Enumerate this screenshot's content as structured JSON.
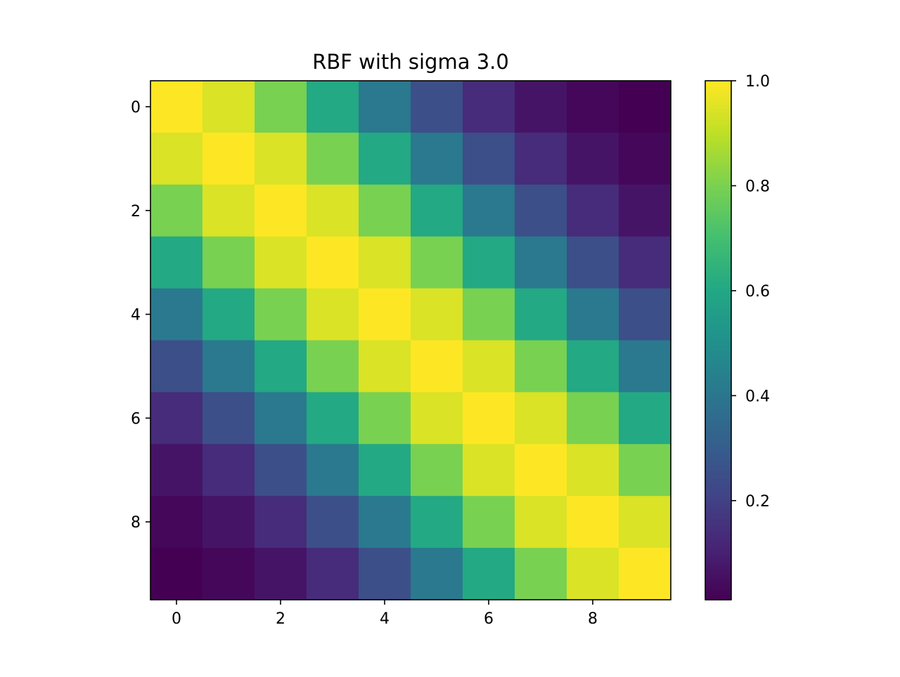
{
  "chart_data": {
    "type": "heatmap",
    "title": "RBF with sigma 3.0",
    "xlabel": "",
    "ylabel": "",
    "rows": 10,
    "cols": 10,
    "x_ticks": [
      0,
      2,
      4,
      6,
      8
    ],
    "y_ticks": [
      0,
      2,
      4,
      6,
      8
    ],
    "colorbar": {
      "range": [
        0.0111,
        1.0
      ],
      "ticks": [
        0.2,
        0.4,
        0.6,
        0.8,
        1.0
      ],
      "tick_labels": [
        "0.2",
        "0.4",
        "0.6",
        "0.8",
        "1.0"
      ]
    },
    "colormap": "viridis",
    "values": [
      [
        1.0,
        0.946,
        0.801,
        0.607,
        0.411,
        0.249,
        0.135,
        0.066,
        0.029,
        0.011
      ],
      [
        0.946,
        1.0,
        0.946,
        0.801,
        0.607,
        0.411,
        0.249,
        0.135,
        0.066,
        0.029
      ],
      [
        0.801,
        0.946,
        1.0,
        0.946,
        0.801,
        0.607,
        0.411,
        0.249,
        0.135,
        0.066
      ],
      [
        0.607,
        0.801,
        0.946,
        1.0,
        0.946,
        0.801,
        0.607,
        0.411,
        0.249,
        0.135
      ],
      [
        0.411,
        0.607,
        0.801,
        0.946,
        1.0,
        0.946,
        0.801,
        0.607,
        0.411,
        0.249
      ],
      [
        0.249,
        0.411,
        0.607,
        0.801,
        0.946,
        1.0,
        0.946,
        0.801,
        0.607,
        0.411
      ],
      [
        0.135,
        0.249,
        0.411,
        0.607,
        0.801,
        0.946,
        1.0,
        0.946,
        0.801,
        0.607
      ],
      [
        0.066,
        0.135,
        0.249,
        0.411,
        0.607,
        0.801,
        0.946,
        1.0,
        0.946,
        0.801
      ],
      [
        0.029,
        0.066,
        0.135,
        0.249,
        0.411,
        0.607,
        0.801,
        0.946,
        1.0,
        0.946
      ],
      [
        0.011,
        0.029,
        0.066,
        0.135,
        0.249,
        0.411,
        0.607,
        0.801,
        0.946,
        1.0
      ]
    ]
  }
}
